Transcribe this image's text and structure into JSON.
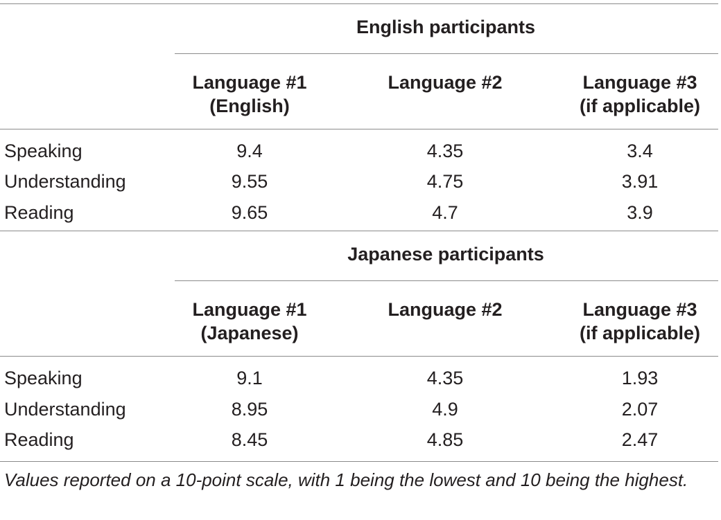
{
  "sections": [
    {
      "title": "English participants",
      "columns": [
        {
          "line1": "Language #1",
          "line2": "(English)"
        },
        {
          "line1": "Language #2",
          "line2": ""
        },
        {
          "line1": "Language #3",
          "line2": "(if applicable)"
        }
      ],
      "rows": [
        {
          "label": "Speaking",
          "values": [
            "9.4",
            "4.35",
            "3.4"
          ]
        },
        {
          "label": "Understanding",
          "values": [
            "9.55",
            "4.75",
            "3.91"
          ]
        },
        {
          "label": "Reading",
          "values": [
            "9.65",
            "4.7",
            "3.9"
          ]
        }
      ]
    },
    {
      "title": "Japanese participants",
      "columns": [
        {
          "line1": "Language #1",
          "line2": "(Japanese)"
        },
        {
          "line1": "Language #2",
          "line2": ""
        },
        {
          "line1": "Language #3",
          "line2": "(if applicable)"
        }
      ],
      "rows": [
        {
          "label": "Speaking",
          "values": [
            "9.1",
            "4.35",
            "1.93"
          ]
        },
        {
          "label": "Understanding",
          "values": [
            "8.95",
            "4.9",
            "2.07"
          ]
        },
        {
          "label": "Reading",
          "values": [
            "8.45",
            "4.85",
            "2.47"
          ]
        }
      ]
    }
  ],
  "footnote": "Values reported on a 10-point scale, with 1 being the lowest and 10 being the highest."
}
